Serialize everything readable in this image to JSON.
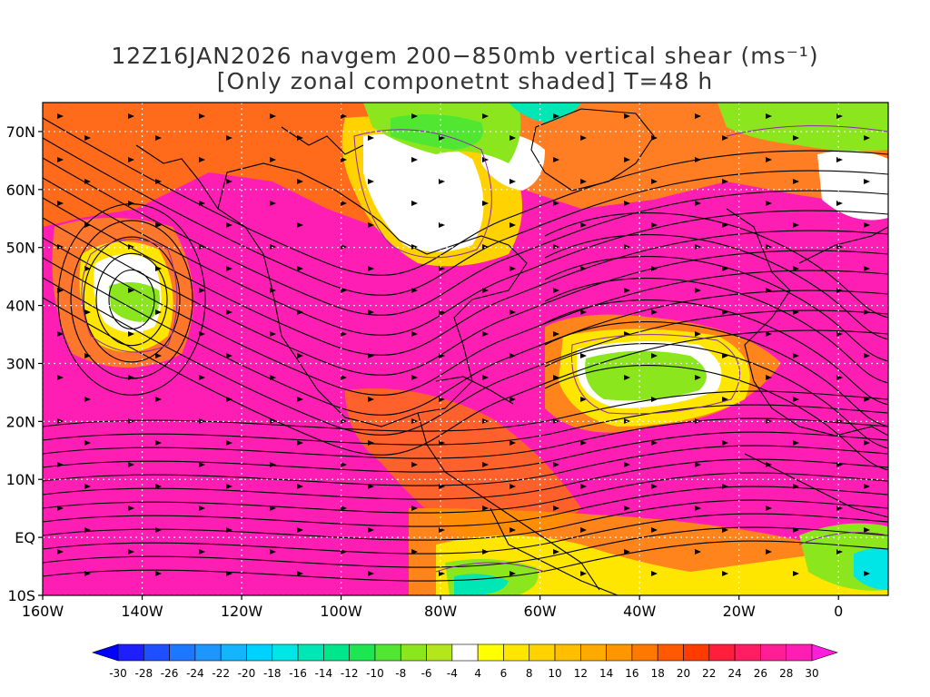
{
  "title": {
    "line1": "12Z16JAN2026 navgem 200−850mb vertical shear (ms⁻¹)",
    "line2": "[Only zonal componetnt shaded] T=48 h"
  },
  "map": {
    "lon_range": [
      -160,
      10
    ],
    "lat_range": [
      -10,
      75
    ],
    "lat_ticks": [
      {
        "value": 70,
        "label": "70N"
      },
      {
        "value": 60,
        "label": "60N"
      },
      {
        "value": 50,
        "label": "50N"
      },
      {
        "value": 40,
        "label": "40N"
      },
      {
        "value": 30,
        "label": "30N"
      },
      {
        "value": 20,
        "label": "20N"
      },
      {
        "value": 10,
        "label": "10N"
      },
      {
        "value": 0,
        "label": "EQ"
      },
      {
        "value": -10,
        "label": "10S"
      }
    ],
    "lon_ticks": [
      {
        "value": -160,
        "label": "160W"
      },
      {
        "value": -140,
        "label": "140W"
      },
      {
        "value": -120,
        "label": "120W"
      },
      {
        "value": -100,
        "label": "100W"
      },
      {
        "value": -80,
        "label": "80W"
      },
      {
        "value": -60,
        "label": "60W"
      },
      {
        "value": -40,
        "label": "40W"
      },
      {
        "value": -20,
        "label": "20W"
      },
      {
        "value": 0,
        "label": "0"
      }
    ],
    "grid": "dotted"
  },
  "colorbar": {
    "labels": [
      "-30",
      "-28",
      "-26",
      "-24",
      "-22",
      "-20",
      "-18",
      "-16",
      "-14",
      "-12",
      "-10",
      "-8",
      "-6",
      "-4",
      "4",
      "6",
      "8",
      "10",
      "12",
      "14",
      "16",
      "18",
      "20",
      "22",
      "24",
      "26",
      "28",
      "30"
    ],
    "colors": [
      "#1e1eff",
      "#1e50ff",
      "#1e78ff",
      "#1e96ff",
      "#14b4ff",
      "#00d2ff",
      "#00e6e6",
      "#00e6b4",
      "#00e68c",
      "#1ee650",
      "#50e632",
      "#8ce61e",
      "#b4e61e",
      "#ffffff",
      "#ffff00",
      "#ffe600",
      "#ffd200",
      "#ffbe00",
      "#ffaa00",
      "#ff9600",
      "#ff7800",
      "#ff5a00",
      "#ff3c00",
      "#ff1e3c",
      "#ff1e64",
      "#ff1e96",
      "#ff1eb4"
    ],
    "low_arrow_color": "#0000ff",
    "high_arrow_color": "#ff1edc"
  }
}
